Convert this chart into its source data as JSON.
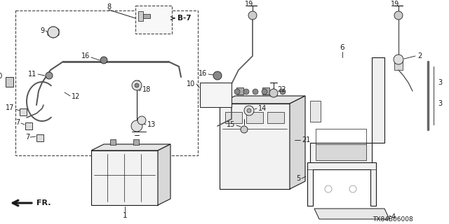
{
  "bg": "#ffffff",
  "lc": "#1a1a1a",
  "diagram_code": "TX84B06008",
  "ref_code": "B-7",
  "figsize": [
    6.4,
    3.2
  ],
  "dpi": 100
}
